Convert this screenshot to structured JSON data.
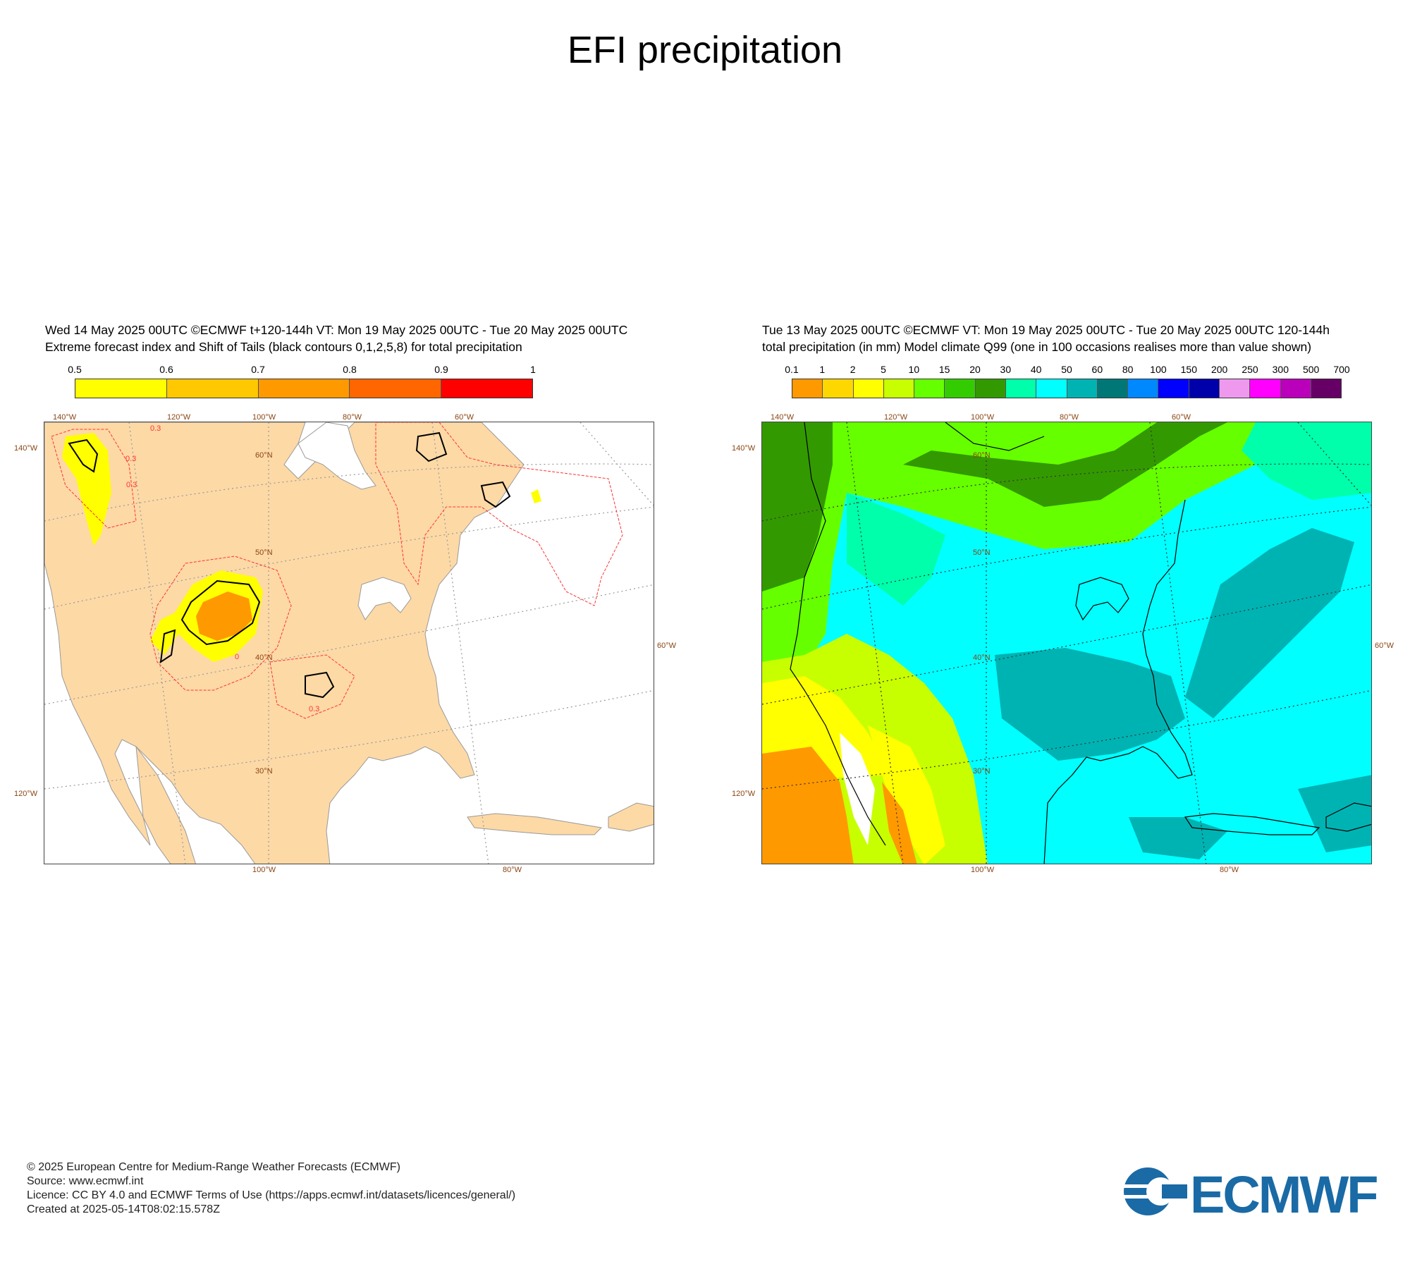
{
  "page": {
    "title": "EFI precipitation"
  },
  "left_panel": {
    "header_line1": "Wed 14 May 2025 00UTC ©ECMWF t+120-144h  VT: Mon 19 May 2025 00UTC - Tue 20 May 2025 00UTC",
    "header_line2": "Extreme forecast index and Shift of Tails (black contours 0,1,2,5,8) for total precipitation",
    "colorbar_labels": [
      "0.5",
      "0.6",
      "0.7",
      "0.8",
      "0.9",
      "1"
    ],
    "colorbar_colors": [
      "#ffff00",
      "#ffc800",
      "#ff9900",
      "#ff6600",
      "#ff0000"
    ],
    "lon_top": [
      "140°W",
      "120°W",
      "100°W",
      "80°W",
      "60°W"
    ],
    "lon_bottom": [
      "100°W",
      "80°W"
    ],
    "lat_inside": [
      "60°N",
      "50°N",
      "40°N",
      "30°N"
    ],
    "lat_left": [
      "140°W",
      "120°W"
    ],
    "lat_right": [
      "60°W"
    ],
    "contour_labels": [
      "0.3",
      "0.3",
      "0.3",
      "0",
      "0.3"
    ]
  },
  "right_panel": {
    "header_line1": "Tue 13 May 2025 00UTC ©ECMWF VT: Mon 19 May 2025 00UTC - Tue 20 May 2025 00UTC   120-144h",
    "header_line2": "total precipitation (in mm)  Model climate Q99 (one in 100 occasions realises more than value shown)",
    "colorbar_labels": [
      "0.1",
      "1",
      "2",
      "5",
      "10",
      "15",
      "20",
      "30",
      "40",
      "50",
      "60",
      "80",
      "100",
      "150",
      "200",
      "250",
      "300",
      "500",
      "700"
    ],
    "colorbar_colors": [
      "#ff9900",
      "#ffd700",
      "#ffff00",
      "#c8ff00",
      "#66ff00",
      "#33cc00",
      "#339900",
      "#00ffaa",
      "#00ffff",
      "#00b3b3",
      "#007777",
      "#0088ff",
      "#0000ff",
      "#0000aa",
      "#ee99ee",
      "#ff00ff",
      "#bb00bb",
      "#660066"
    ],
    "lon_top": [
      "140°W",
      "120°W",
      "100°W",
      "80°W",
      "60°W"
    ],
    "lon_bottom": [
      "100°W",
      "80°W"
    ],
    "lat_inside": [
      "60°N",
      "50°N",
      "40°N",
      "30°N"
    ],
    "lat_left": [
      "140°W",
      "120°W"
    ],
    "lat_right": [
      "60°W"
    ]
  },
  "footer": {
    "line1": "© 2025 European Centre for Medium-Range Weather Forecasts (ECMWF)",
    "line2": "Source: www.ecmwf.int",
    "line3": "Licence: CC BY 4.0 and ECMWF Terms of Use (https://apps.ecmwf.int/datasets/licences/general/)",
    "line4": "Created at 2025-05-14T08:02:15.578Z"
  },
  "logo": {
    "text": "ECMWF",
    "color": "#1a6aa6"
  }
}
